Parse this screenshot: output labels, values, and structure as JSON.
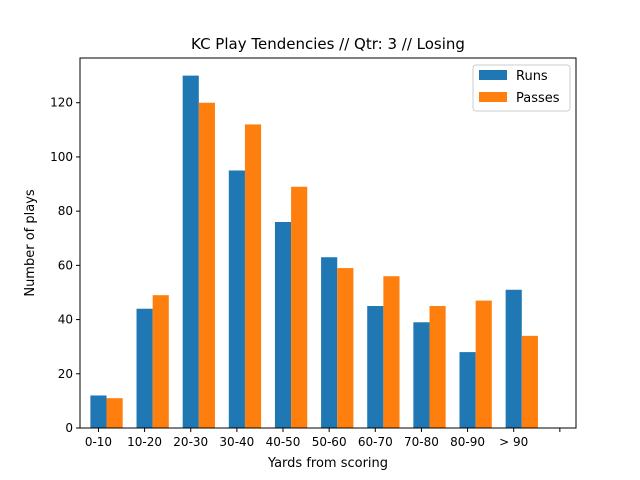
{
  "chart_data": {
    "type": "bar",
    "title": "KC Play Tendencies // Qtr: 3 // Losing",
    "xlabel": "Yards from scoring",
    "ylabel": "Number of plays",
    "categories": [
      "0-10",
      "10-20",
      "20-30",
      "30-40",
      "40-50",
      "50-60",
      "60-70",
      "70-80",
      "80-90",
      "> 90",
      ""
    ],
    "series": [
      {
        "name": "Runs",
        "color": "#1f77b4",
        "values": [
          12,
          44,
          130,
          95,
          76,
          63,
          45,
          39,
          28,
          51,
          0
        ]
      },
      {
        "name": "Passes",
        "color": "#ff7f0e",
        "values": [
          11,
          49,
          120,
          112,
          89,
          59,
          56,
          45,
          47,
          34,
          0
        ]
      }
    ],
    "ylim": [
      0,
      136.5
    ],
    "yticks": [
      0,
      20,
      40,
      60,
      80,
      100,
      120
    ],
    "grid": false,
    "legend_position": "top-right"
  }
}
